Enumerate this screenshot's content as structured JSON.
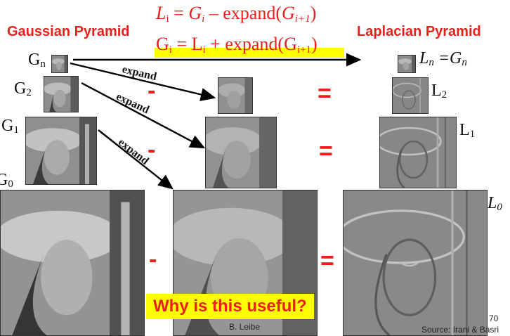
{
  "headings": {
    "gaussian": "Gaussian Pyramid",
    "laplacian": "Laplacian Pyramid"
  },
  "formulas": {
    "f1": {
      "lhs": "L",
      "lhs_sub": "i",
      "eq": " = ",
      "g": "G",
      "g_sub": "i",
      "op": " – expand(",
      "g2": "G",
      "g2_sub": "i+1",
      "close": ")"
    },
    "f2": {
      "lhs": "G",
      "lhs_sub": "i",
      "eq": " = L",
      "l_sub": "i",
      "op": " + expand(",
      "g2": "G",
      "g2_sub": "i+1",
      "close": ")"
    }
  },
  "labels": {
    "gn": {
      "main": "G",
      "sub": "n"
    },
    "g2": {
      "main": "G",
      "sub": "2"
    },
    "g1": {
      "main": "G",
      "sub": "1"
    },
    "g0": {
      "main": "G",
      "sub": "0"
    },
    "ln": {
      "text": "L",
      "sub": "n",
      "eq": " =G",
      "eq_sub": "n"
    },
    "l2": {
      "main": "L",
      "sub": "2"
    },
    "l1": {
      "main": "L",
      "sub": "1"
    },
    "l0": {
      "main": "L",
      "sub": "0"
    }
  },
  "expand_label": "expand",
  "operators": {
    "minus": "-",
    "equals": "="
  },
  "callout": "Why is this useful?",
  "credit": "B. Leibe",
  "page_number": "70",
  "source": "Source: Irani & Basri",
  "colors": {
    "accent": "#e8201b",
    "highlight": "#ffff00"
  }
}
